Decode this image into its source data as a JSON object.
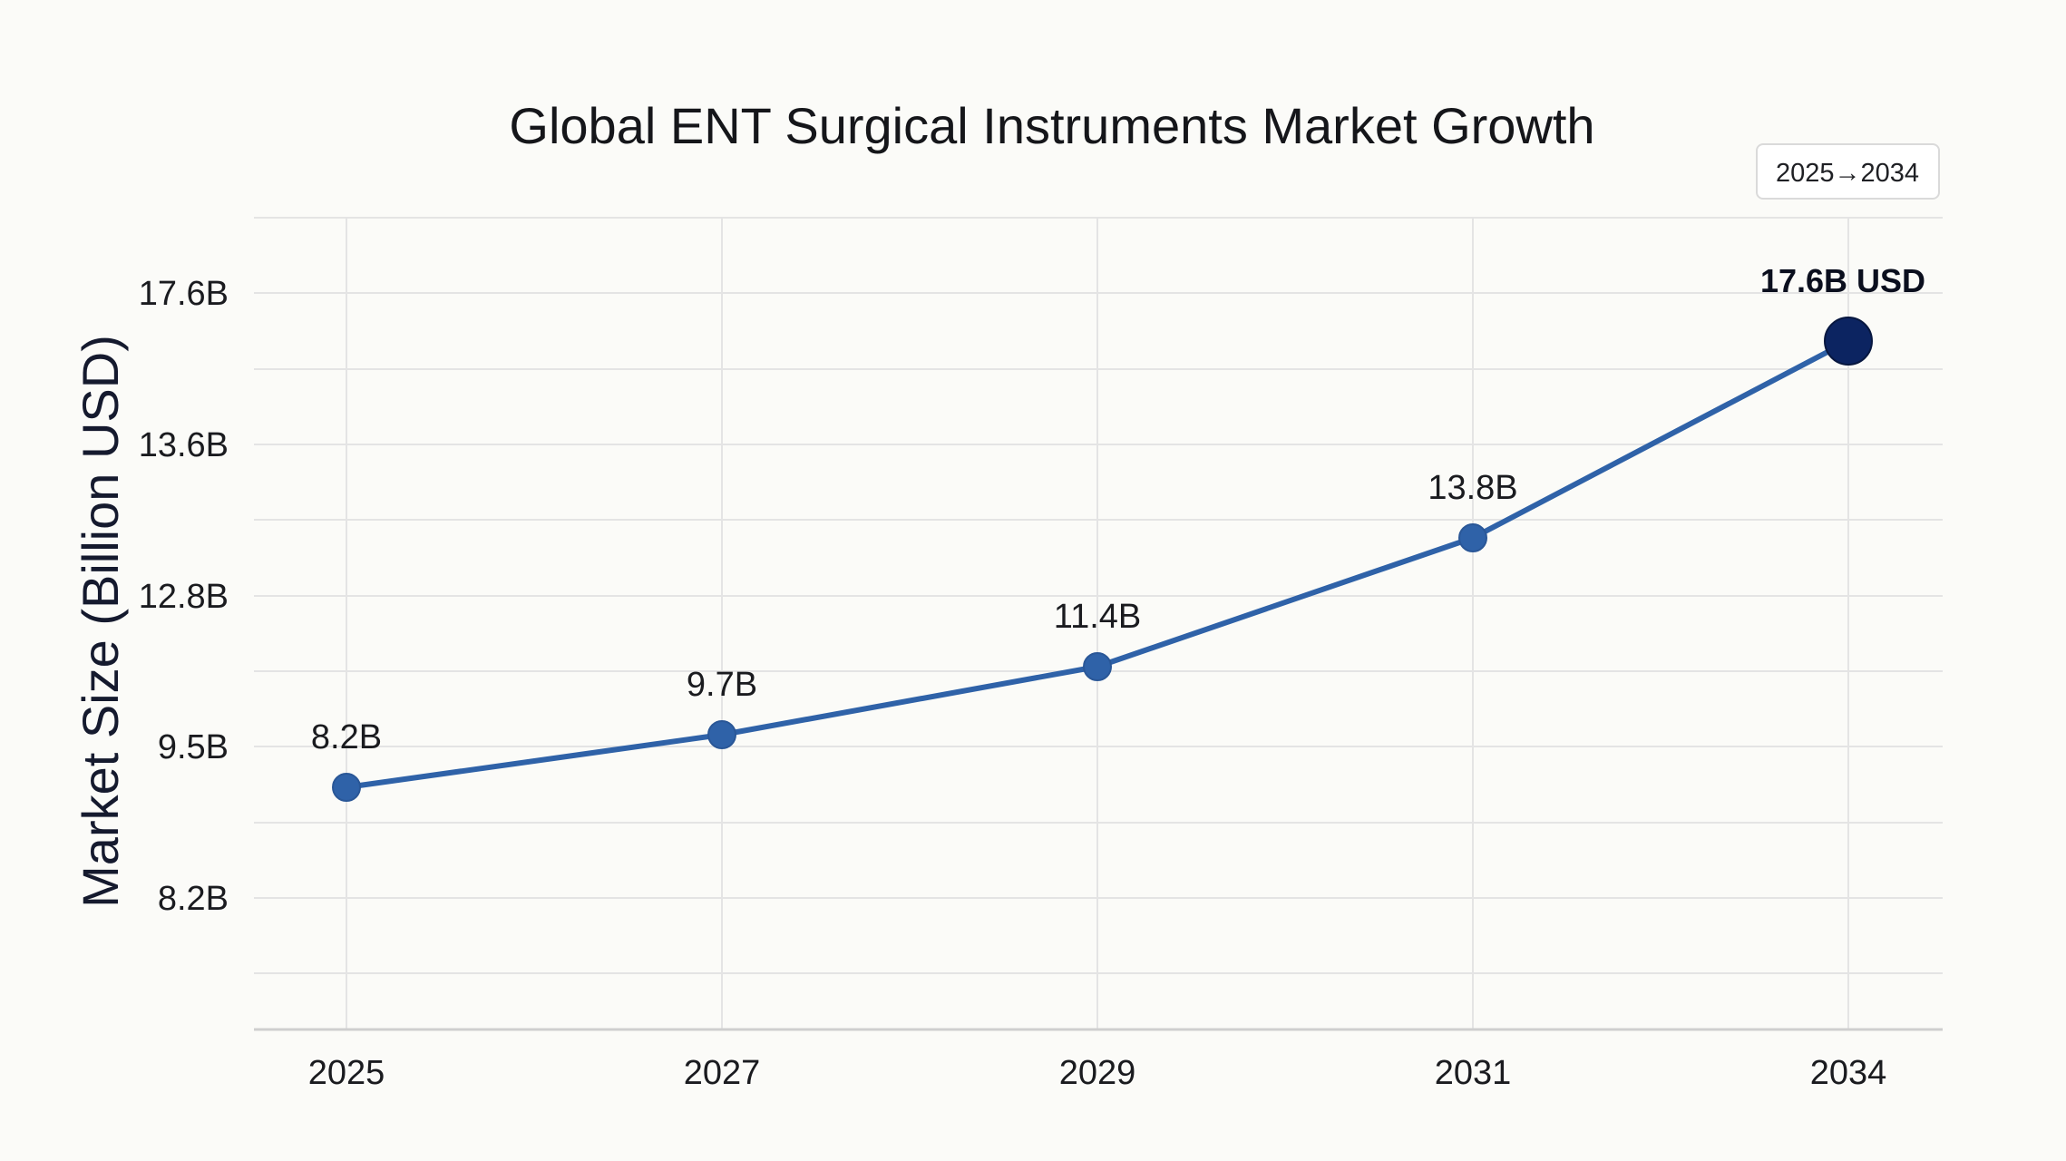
{
  "chart_data": {
    "type": "line",
    "title": "Global ENT Surgical Instruments Market Growth",
    "badge": "2025→2034",
    "xlabel": "",
    "ylabel": "Market Size (Billion USD)",
    "categories": [
      "2025",
      "2027",
      "2029",
      "2031",
      "2034"
    ],
    "series": [
      {
        "values": [
          8.2,
          9.7,
          11.4,
          13.8,
          17.6
        ],
        "data_labels": [
          "8.2B",
          "9.7B",
          "11.4B",
          "13.8B",
          "17.6B USD"
        ]
      }
    ],
    "y_tick_labels": [
      "8.2B",
      "9.5B",
      "12.8B",
      "13.6B",
      "17.6B"
    ],
    "grid": true,
    "highlight_last_point": true,
    "colors": {
      "line": "#2f62a8",
      "marker": "#2f62a8",
      "highlight_marker": "#0c2461",
      "grid": "#e4e4e4",
      "axis": "#cfcfcf",
      "background": "#fbfbf8"
    }
  }
}
